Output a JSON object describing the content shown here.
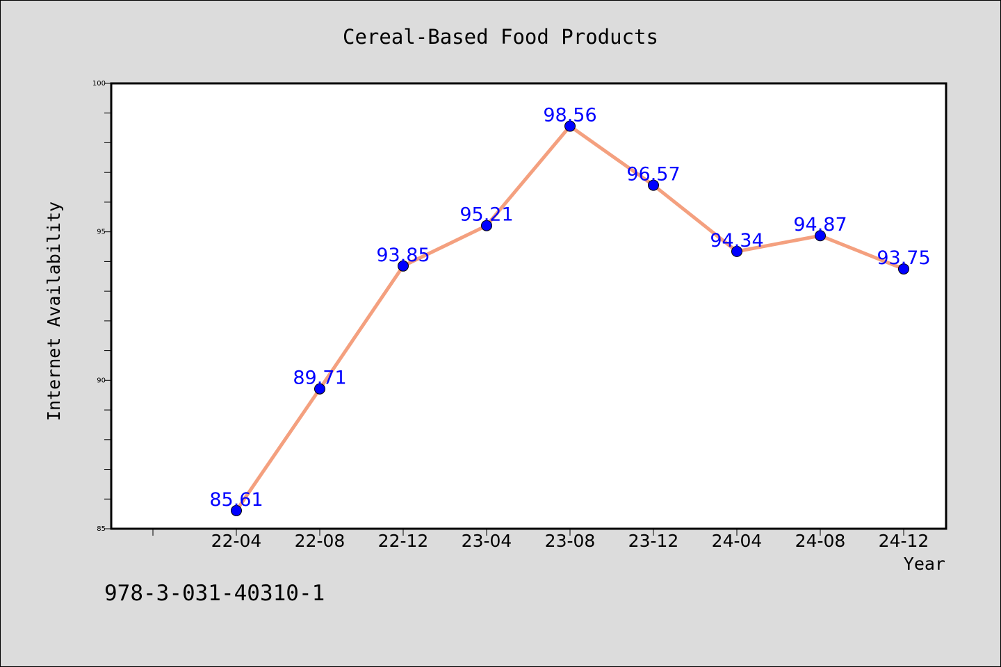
{
  "chart_data": {
    "type": "line",
    "title": "Cereal-Based Food Products",
    "xlabel": "Year",
    "ylabel": "Internet Availability",
    "categories": [
      "22-04",
      "22-08",
      "22-12",
      "23-04",
      "23-08",
      "23-12",
      "24-04",
      "24-08",
      "24-12"
    ],
    "series": [
      {
        "values": [
          85.61,
          89.71,
          93.85,
          95.21,
          98.56,
          96.57,
          94.34,
          94.87,
          93.75
        ],
        "line_color": "#f4a07f",
        "marker_color": "#0000ff"
      }
    ],
    "data_labels": [
      "85.61",
      "89.71",
      "93.85",
      "95.21",
      "98.56",
      "96.57",
      "94.34",
      "94.87",
      "93.75"
    ],
    "ylim": [
      85,
      100
    ],
    "yticks": [
      "85",
      "90",
      "95",
      "100"
    ],
    "grid": false,
    "legend": "none",
    "colors": {
      "background": "#dcdcdc",
      "plot_background": "#ffffff",
      "line": "#f4a07f",
      "marker": "#0000ff",
      "data_label": "#0000ff"
    }
  },
  "footer_text": "978-3-031-40310-1"
}
